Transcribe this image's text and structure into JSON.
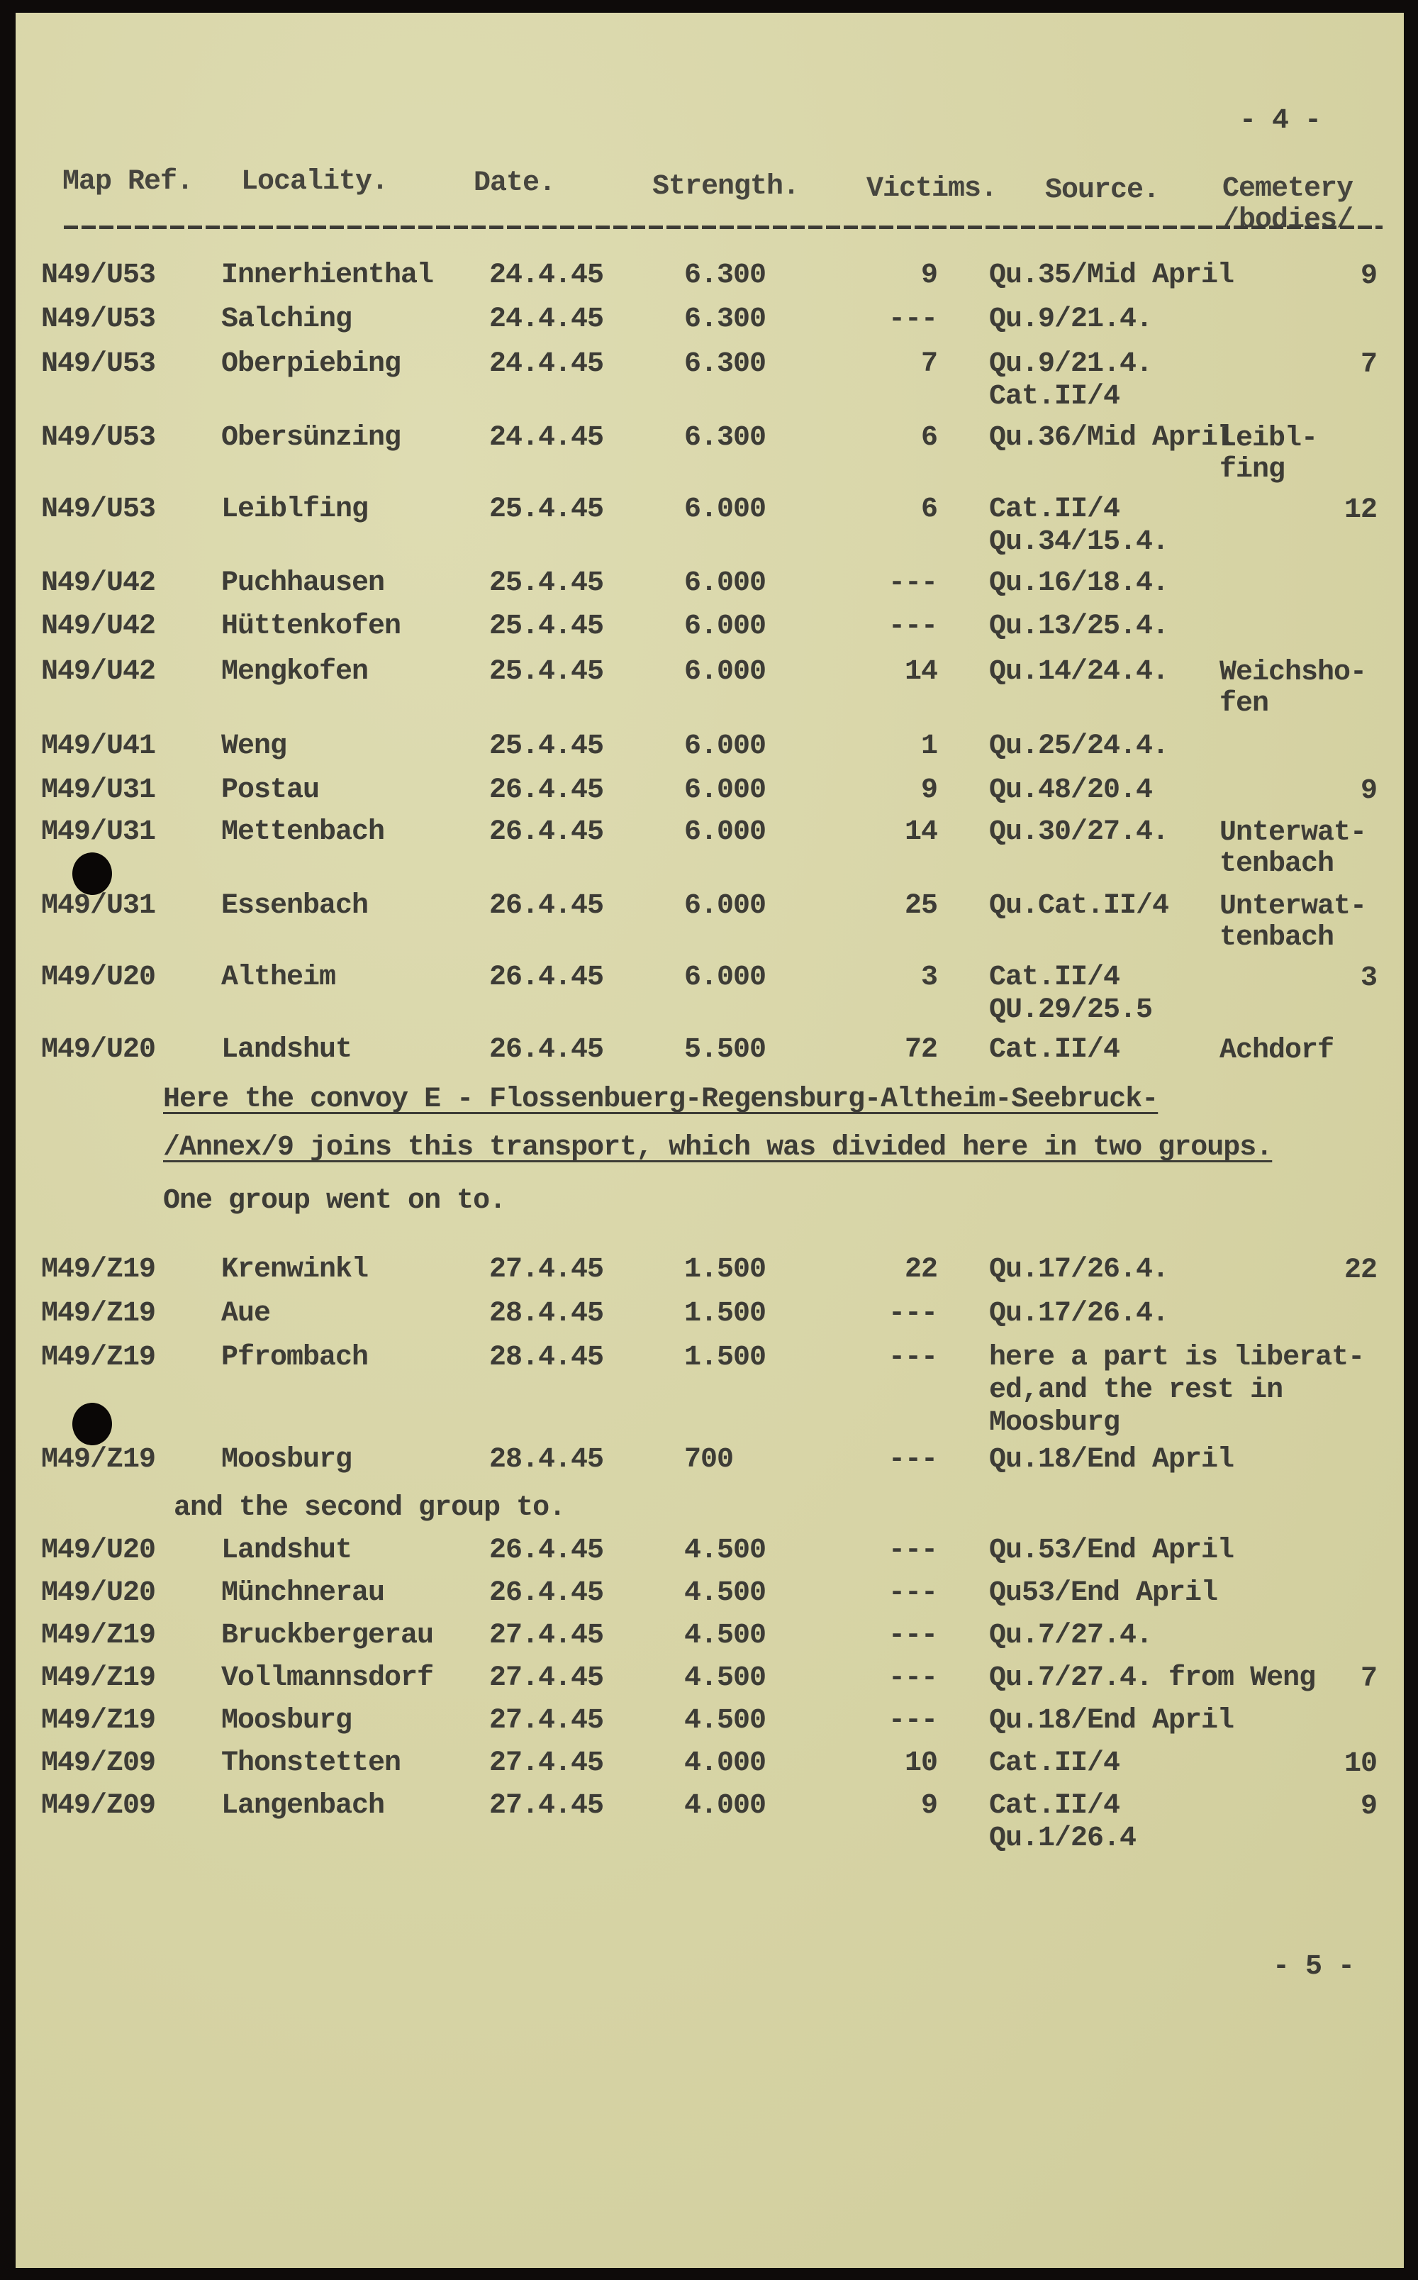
{
  "page_number_top": "- 4 -",
  "page_number_bottom": "- 5 -",
  "headers": {
    "map_ref": "Map Ref.",
    "locality": "Locality.",
    "date": "Date.",
    "strength": "Strength.",
    "victims": "Victims.",
    "source": "Source.",
    "cemetery": "Cemetery\n/bodies/"
  },
  "rows_a": [
    {
      "map_ref": "N49/U53",
      "locality": "Innerhienthal",
      "date": "24.4.45",
      "strength": "6.300",
      "victims": "9",
      "source": "Qu.35/Mid April",
      "cemetery": "9"
    },
    {
      "map_ref": "N49/U53",
      "locality": "Salching",
      "date": "24.4.45",
      "strength": "6.300",
      "victims": "---",
      "source": "Qu.9/21.4.",
      "cemetery": ""
    },
    {
      "map_ref": "N49/U53",
      "locality": "Oberpiebing",
      "date": "24.4.45",
      "strength": "6.300",
      "victims": "7",
      "source": "Qu.9/21.4.\nCat.II/4",
      "cemetery": "7"
    },
    {
      "map_ref": "N49/U53",
      "locality": "Obersünzing",
      "date": "24.4.45",
      "strength": "6.300",
      "victims": "6",
      "source": "Qu.36/Mid April",
      "cemetery": "Leibl-\nfing"
    },
    {
      "map_ref": "N49/U53",
      "locality": "Leiblfing",
      "date": "25.4.45",
      "strength": "6.000",
      "victims": "6",
      "source": "Cat.II/4\nQu.34/15.4.",
      "cemetery": "12"
    },
    {
      "map_ref": "N49/U42",
      "locality": "Puchhausen",
      "date": "25.4.45",
      "strength": "6.000",
      "victims": "---",
      "source": "Qu.16/18.4.",
      "cemetery": ""
    },
    {
      "map_ref": "N49/U42",
      "locality": "Hüttenkofen",
      "date": "25.4.45",
      "strength": "6.000",
      "victims": "---",
      "source": "Qu.13/25.4.",
      "cemetery": ""
    },
    {
      "map_ref": "N49/U42",
      "locality": "Mengkofen",
      "date": "25.4.45",
      "strength": "6.000",
      "victims": "14",
      "source": "Qu.14/24.4.",
      "cemetery": "Weichsho-\nfen"
    },
    {
      "map_ref": "M49/U41",
      "locality": "Weng",
      "date": "25.4.45",
      "strength": "6.000",
      "victims": "1",
      "source": "Qu.25/24.4.",
      "cemetery": ""
    },
    {
      "map_ref": "M49/U31",
      "locality": "Postau",
      "date": "26.4.45",
      "strength": "6.000",
      "victims": "9",
      "source": "Qu.48/20.4",
      "cemetery": "9"
    },
    {
      "map_ref": "M49/U31",
      "locality": "Mettenbach",
      "date": "26.4.45",
      "strength": "6.000",
      "victims": "14",
      "source": "Qu.30/27.4.",
      "cemetery": "Unterwat-\ntenbach"
    },
    {
      "map_ref": "M49/U31",
      "locality": "Essenbach",
      "date": "26.4.45",
      "strength": "6.000",
      "victims": "25",
      "source": "Qu.Cat.II/4",
      "cemetery": "Unterwat-\ntenbach"
    },
    {
      "map_ref": "M49/U20",
      "locality": "Altheim",
      "date": "26.4.45",
      "strength": "6.000",
      "victims": "3",
      "source": "Cat.II/4\nQU.29/25.5",
      "cemetery": "3"
    },
    {
      "map_ref": "M49/U20",
      "locality": "Landshut",
      "date": "26.4.45",
      "strength": "5.500",
      "victims": "72",
      "source": "Cat.II/4",
      "cemetery": "Achdorf"
    }
  ],
  "note_line1": "Here the convoy E - Flossenbuerg-Regensburg-Altheim-Seebruck-",
  "note_line2": "/Annex/9 joins this transport, which was divided here in two groups.",
  "note_line3": "One group went on to.",
  "rows_b": [
    {
      "map_ref": "M49/Z19",
      "locality": "Krenwinkl",
      "date": "27.4.45",
      "strength": "1.500",
      "victims": "22",
      "source": "Qu.17/26.4.",
      "cemetery": "22"
    },
    {
      "map_ref": "M49/Z19",
      "locality": "Aue",
      "date": "28.4.45",
      "strength": "1.500",
      "victims": "---",
      "source": "Qu.17/26.4.",
      "cemetery": ""
    },
    {
      "map_ref": "M49/Z19",
      "locality": "Pfrombach",
      "date": "28.4.45",
      "strength": "1.500",
      "victims": "---",
      "source": "here a part is liberat-\ned,and the rest in\nMoosburg",
      "cemetery": ""
    },
    {
      "map_ref": "M49/Z19",
      "locality": "Moosburg",
      "date": "28.4.45",
      "strength": "700",
      "victims": "---",
      "source": "Qu.18/End April",
      "cemetery": ""
    }
  ],
  "note_line4": "and the second group to.",
  "rows_c": [
    {
      "map_ref": "M49/U20",
      "locality": "Landshut",
      "date": "26.4.45",
      "strength": "4.500",
      "victims": "---",
      "source": "Qu.53/End April",
      "cemetery": ""
    },
    {
      "map_ref": "M49/U20",
      "locality": "Münchnerau",
      "date": "26.4.45",
      "strength": "4.500",
      "victims": "---",
      "source": "Qu53/End April",
      "cemetery": ""
    },
    {
      "map_ref": "M49/Z19",
      "locality": "Bruckbergerau",
      "date": "27.4.45",
      "strength": "4.500",
      "victims": "---",
      "source": "Qu.7/27.4.",
      "cemetery": ""
    },
    {
      "map_ref": "M49/Z19",
      "locality": "Vollmannsdorf",
      "date": "27.4.45",
      "strength": "4.500",
      "victims": "---",
      "source": "Qu.7/27.4. from Weng",
      "cemetery": "7"
    },
    {
      "map_ref": "M49/Z19",
      "locality": "Moosburg",
      "date": "27.4.45",
      "strength": "4.500",
      "victims": "---",
      "source": "Qu.18/End April",
      "cemetery": ""
    },
    {
      "map_ref": "M49/Z09",
      "locality": "Thonstetten",
      "date": "27.4.45",
      "strength": "4.000",
      "victims": "10",
      "source": "Cat.II/4",
      "cemetery": "10"
    },
    {
      "map_ref": "M49/Z09",
      "locality": "Langenbach",
      "date": "27.4.45",
      "strength": "4.000",
      "victims": "9",
      "source": "Cat.II/4\nQu.1/26.4",
      "cemetery": "9"
    }
  ]
}
